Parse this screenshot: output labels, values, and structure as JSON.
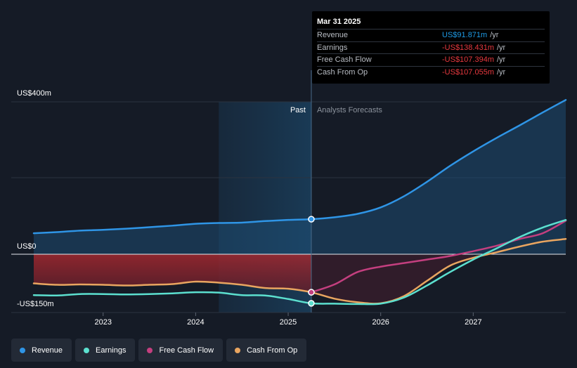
{
  "tooltip": {
    "date": "Mar 31 2025",
    "rows": [
      {
        "label": "Revenue",
        "value": "US$91.871m",
        "unit": "/yr",
        "color": "#1e9be6"
      },
      {
        "label": "Earnings",
        "value": "-US$138.431m",
        "unit": "/yr",
        "color": "#e8393f"
      },
      {
        "label": "Free Cash Flow",
        "value": "-US$107.394m",
        "unit": "/yr",
        "color": "#e8393f"
      },
      {
        "label": "Cash From Op",
        "value": "-US$107.055m",
        "unit": "/yr",
        "color": "#e8393f"
      }
    ]
  },
  "legend": [
    {
      "label": "Revenue",
      "color": "#2f95e6"
    },
    {
      "label": "Earnings",
      "color": "#5ce0cf"
    },
    {
      "label": "Free Cash Flow",
      "color": "#c43f7f"
    },
    {
      "label": "Cash From Op",
      "color": "#e9a560"
    }
  ],
  "chart_data": {
    "type": "line",
    "title": "",
    "xlabel": "",
    "ylabel": "",
    "y_axis_labels": [
      {
        "label": "US$400m",
        "value": 400
      },
      {
        "label": "US$0",
        "value": 0
      },
      {
        "label": "-US$150m",
        "value": -150
      }
    ],
    "ylim": [
      -150,
      400
    ],
    "xlim": [
      2022.25,
      2028.0
    ],
    "x_ticks": [
      {
        "label": "2023",
        "value": 2023.0
      },
      {
        "label": "2024",
        "value": 2024.0
      },
      {
        "label": "2025",
        "value": 2025.0
      },
      {
        "label": "2026",
        "value": 2026.0
      },
      {
        "label": "2027",
        "value": 2027.0
      }
    ],
    "past_label": "Past",
    "forecast_label": "Analysts Forecasts",
    "current_x": 2025.25,
    "past_shade_start": 2024.25,
    "series": [
      {
        "name": "Revenue",
        "color": "#2f95e6",
        "points": [
          [
            2022.25,
            55
          ],
          [
            2022.5,
            58
          ],
          [
            2022.75,
            62
          ],
          [
            2023.0,
            64
          ],
          [
            2023.25,
            67
          ],
          [
            2023.5,
            71
          ],
          [
            2023.75,
            75
          ],
          [
            2024.0,
            80
          ],
          [
            2024.25,
            82
          ],
          [
            2024.5,
            83
          ],
          [
            2024.75,
            87
          ],
          [
            2025.0,
            90
          ],
          [
            2025.25,
            92
          ],
          [
            2025.5,
            97
          ],
          [
            2025.75,
            106
          ],
          [
            2026.0,
            123
          ],
          [
            2026.25,
            152
          ],
          [
            2026.5,
            190
          ],
          [
            2026.75,
            232
          ],
          [
            2027.0,
            270
          ],
          [
            2027.25,
            305
          ],
          [
            2027.5,
            338
          ],
          [
            2027.75,
            372
          ],
          [
            2028.0,
            405
          ]
        ]
      },
      {
        "name": "Earnings",
        "color": "#5ce0cf",
        "points": [
          [
            2022.25,
            -115
          ],
          [
            2022.5,
            -116
          ],
          [
            2022.75,
            -112
          ],
          [
            2023.0,
            -112
          ],
          [
            2023.25,
            -113
          ],
          [
            2023.5,
            -112
          ],
          [
            2023.75,
            -110
          ],
          [
            2024.0,
            -107
          ],
          [
            2024.25,
            -108
          ],
          [
            2024.5,
            -115
          ],
          [
            2024.75,
            -116
          ],
          [
            2025.0,
            -126
          ],
          [
            2025.25,
            -138
          ],
          [
            2025.5,
            -139
          ],
          [
            2025.75,
            -140
          ],
          [
            2026.0,
            -139
          ],
          [
            2026.25,
            -122
          ],
          [
            2026.5,
            -88
          ],
          [
            2026.75,
            -50
          ],
          [
            2027.0,
            -15
          ],
          [
            2027.25,
            15
          ],
          [
            2027.5,
            45
          ],
          [
            2027.75,
            70
          ],
          [
            2028.0,
            90
          ]
        ]
      },
      {
        "name": "Free Cash Flow",
        "color": "#c43f7f",
        "points": [
          [
            2025.25,
            -107
          ],
          [
            2025.5,
            -85
          ],
          [
            2025.75,
            -50
          ],
          [
            2026.0,
            -35
          ],
          [
            2026.25,
            -25
          ],
          [
            2026.5,
            -15
          ],
          [
            2026.75,
            -5
          ],
          [
            2027.0,
            8
          ],
          [
            2027.25,
            22
          ],
          [
            2027.5,
            40
          ],
          [
            2027.75,
            55
          ],
          [
            2028.0,
            88
          ]
        ]
      },
      {
        "name": "Cash From Op",
        "color": "#e9a560",
        "points": [
          [
            2022.25,
            -82
          ],
          [
            2022.5,
            -86
          ],
          [
            2022.75,
            -85
          ],
          [
            2023.0,
            -86
          ],
          [
            2023.25,
            -88
          ],
          [
            2023.5,
            -86
          ],
          [
            2023.75,
            -84
          ],
          [
            2024.0,
            -77
          ],
          [
            2024.25,
            -80
          ],
          [
            2024.5,
            -86
          ],
          [
            2024.75,
            -95
          ],
          [
            2025.0,
            -97
          ],
          [
            2025.25,
            -107
          ],
          [
            2025.5,
            -125
          ],
          [
            2025.75,
            -135
          ],
          [
            2026.0,
            -138
          ],
          [
            2026.25,
            -118
          ],
          [
            2026.5,
            -75
          ],
          [
            2026.75,
            -32
          ],
          [
            2027.0,
            -10
          ],
          [
            2027.25,
            5
          ],
          [
            2027.5,
            20
          ],
          [
            2027.75,
            33
          ],
          [
            2028.0,
            40
          ]
        ]
      }
    ]
  }
}
